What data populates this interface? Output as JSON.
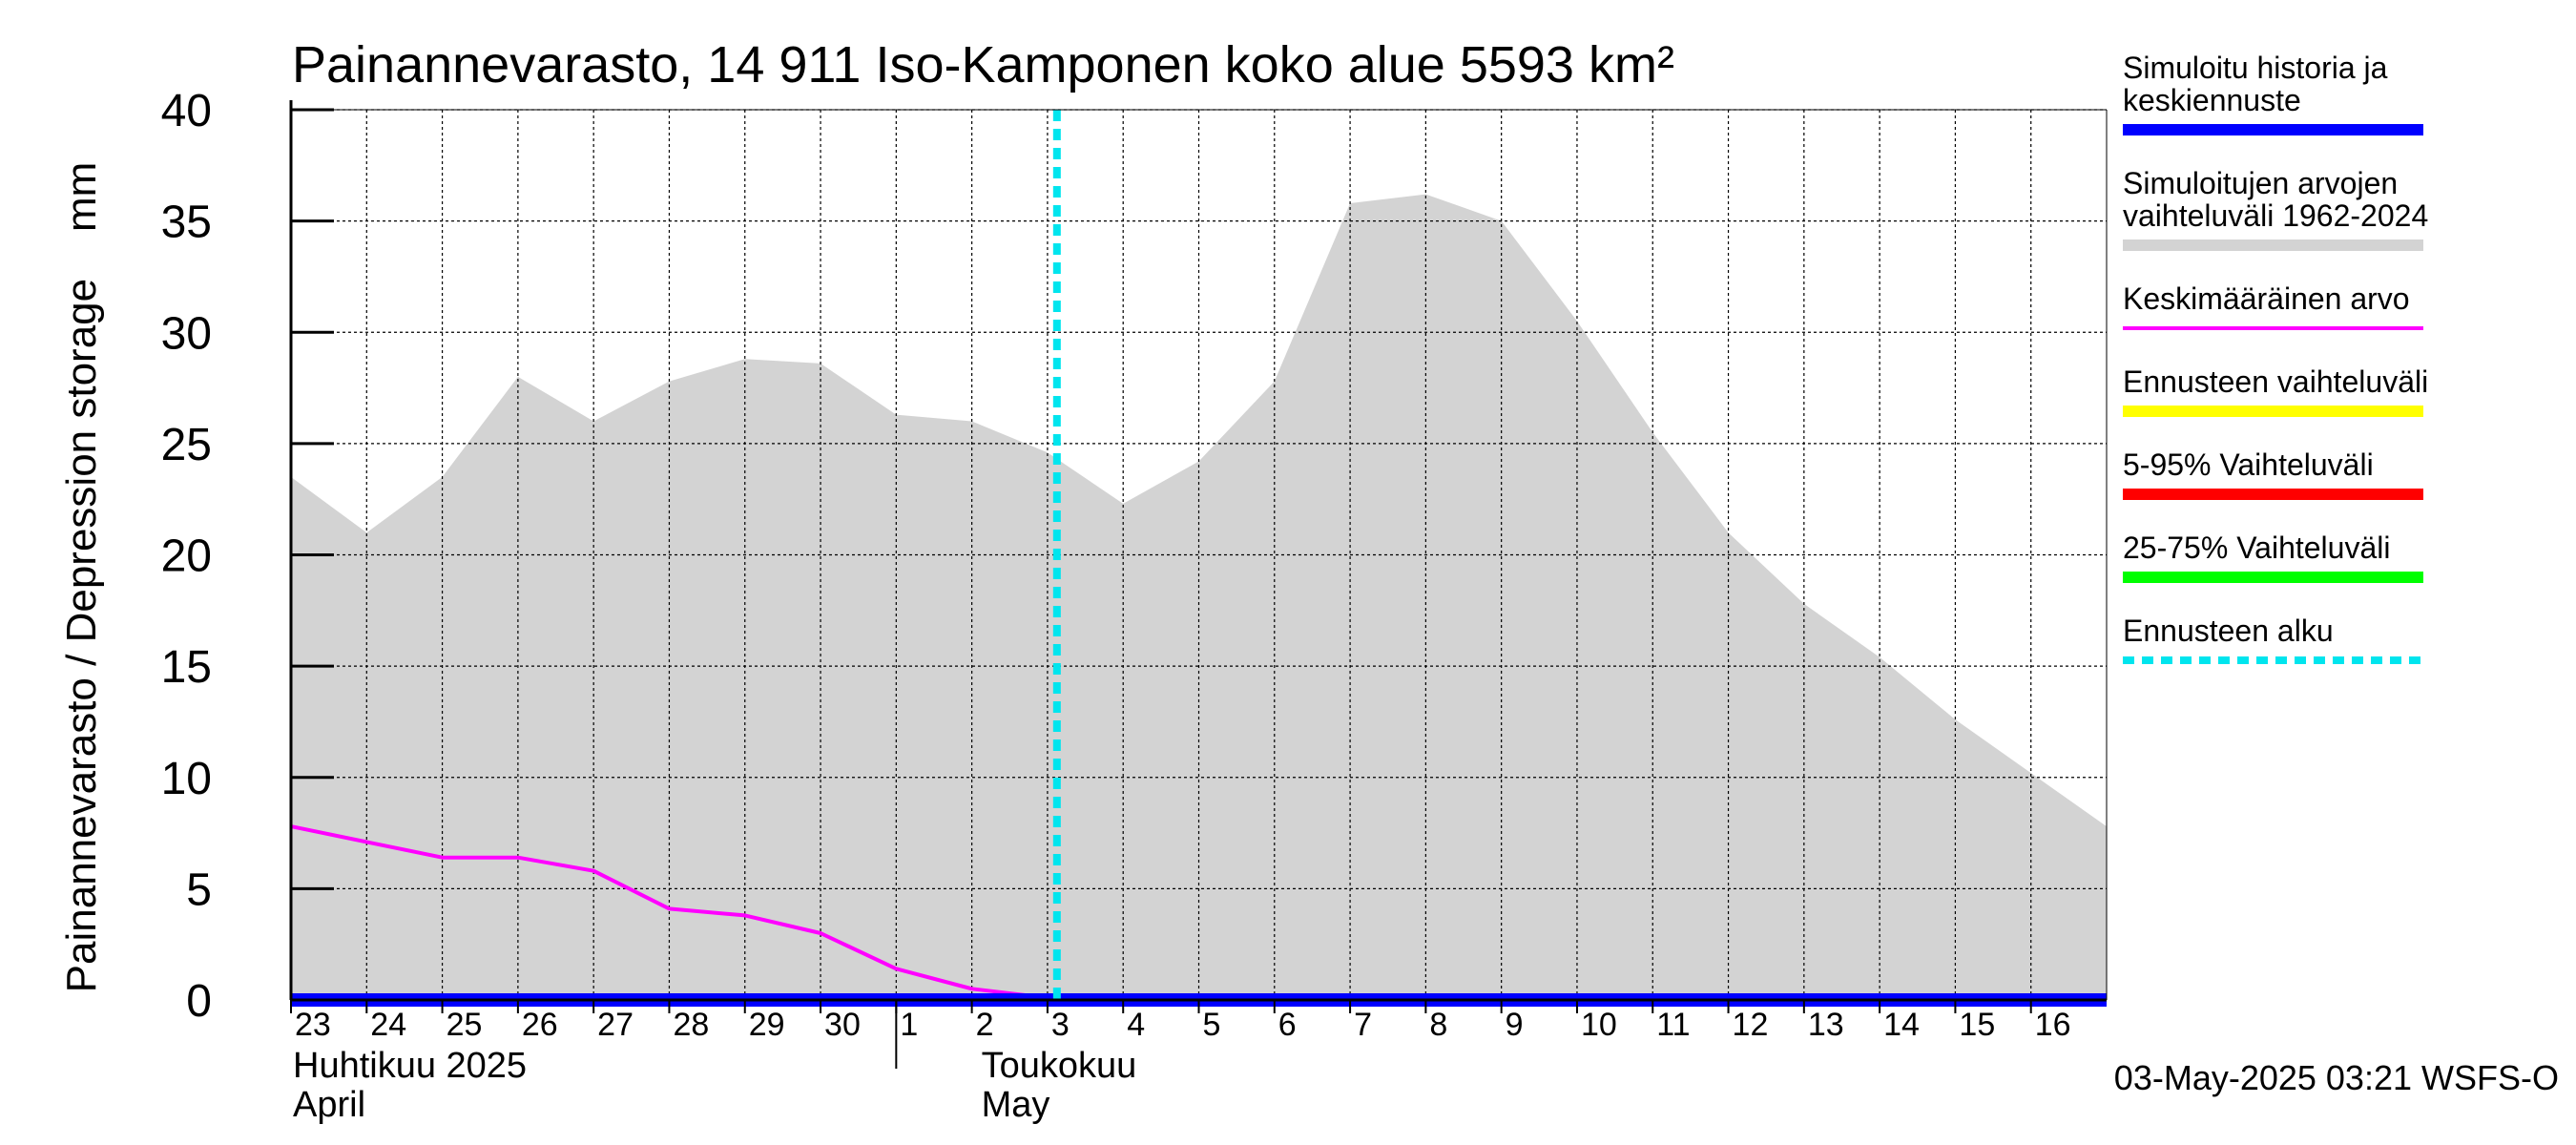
{
  "chart_data": {
    "type": "area",
    "title": "Painannevarasto, 14 911 Iso-Kamponen koko alue 5593 km²",
    "ylabel": "Painannevarasto / Depression storage    mm",
    "ylim": [
      0,
      40
    ],
    "yticks": [
      0,
      5,
      10,
      15,
      20,
      25,
      30,
      35,
      40
    ],
    "grid": true,
    "legend_position": "right",
    "x_start": "2025-04-23",
    "x_end": "2025-05-17",
    "x_tick_labels": [
      "23",
      "24",
      "25",
      "26",
      "27",
      "28",
      "29",
      "30",
      "1",
      "2",
      "3",
      "4",
      "5",
      "6",
      "7",
      "8",
      "9",
      "10",
      "11",
      "12",
      "13",
      "14",
      "15",
      "16"
    ],
    "month_labels": [
      {
        "fi": "Huhtikuu  2025",
        "en": "April",
        "date": "2025-04-23"
      },
      {
        "fi": "Toukokuu",
        "en": "May",
        "date": "2025-05-02"
      }
    ],
    "month_separator_date": "2025-05-01",
    "forecast_start": "2025-05-03T03:00",
    "series": [
      {
        "name": "Simuloitujen arvojen vaihteluväli 1962-2024",
        "kind": "band",
        "color": "#d3d3d3",
        "x": [
          "2025-04-23",
          "2025-04-24",
          "2025-04-25",
          "2025-04-26",
          "2025-04-27",
          "2025-04-28",
          "2025-04-29",
          "2025-04-30",
          "2025-05-01",
          "2025-05-02",
          "2025-05-03",
          "2025-05-04",
          "2025-05-05",
          "2025-05-06",
          "2025-05-07",
          "2025-05-08",
          "2025-05-09",
          "2025-05-10",
          "2025-05-11",
          "2025-05-12",
          "2025-05-13",
          "2025-05-14",
          "2025-05-15",
          "2025-05-16",
          "2025-05-17"
        ],
        "upper": [
          23.5,
          21.0,
          23.5,
          28.0,
          26.0,
          27.8,
          28.8,
          28.6,
          26.3,
          26.0,
          24.6,
          22.3,
          24.2,
          27.8,
          35.8,
          36.2,
          35.0,
          30.5,
          25.5,
          21.0,
          17.8,
          15.4,
          12.6,
          10.2,
          7.8
        ],
        "lower": [
          0,
          0,
          0,
          0,
          0,
          0,
          0,
          0,
          0,
          0,
          0,
          0,
          0,
          0,
          0,
          0,
          0,
          0,
          0,
          0,
          0,
          0,
          0,
          0,
          0
        ]
      },
      {
        "name": "Keskimääräinen arvo",
        "kind": "line",
        "color": "#ff00ff",
        "x": [
          "2025-04-23",
          "2025-04-24",
          "2025-04-25",
          "2025-04-26",
          "2025-04-27",
          "2025-04-28",
          "2025-04-29",
          "2025-04-30",
          "2025-05-01",
          "2025-05-02",
          "2025-05-03",
          "2025-05-04",
          "2025-05-05",
          "2025-05-06",
          "2025-05-07",
          "2025-05-08",
          "2025-05-09",
          "2025-05-10",
          "2025-05-11",
          "2025-05-12",
          "2025-05-13",
          "2025-05-14",
          "2025-05-15",
          "2025-05-16",
          "2025-05-17"
        ],
        "values": [
          7.8,
          7.1,
          6.4,
          6.4,
          5.8,
          4.1,
          3.8,
          3.0,
          1.4,
          0.5,
          0.1,
          0.05,
          0.05,
          0.05,
          0.05,
          0.05,
          0.05,
          0.05,
          0.05,
          0.05,
          0.05,
          0.05,
          0.05,
          0.05,
          0.05
        ]
      },
      {
        "name": "Simuloitu historia ja keskiennuste",
        "kind": "line",
        "color": "#0000ff",
        "x": [
          "2025-04-23",
          "2025-05-17"
        ],
        "values": [
          0,
          0
        ]
      }
    ]
  },
  "legend": [
    {
      "lines": [
        "Simuloitu historia ja",
        "keskiennuste"
      ],
      "color": "#0000ff",
      "style": "solid-thick"
    },
    {
      "lines": [
        "Simuloitujen arvojen",
        "vaihteluväli 1962-2024"
      ],
      "color": "#d3d3d3",
      "style": "solid-thick"
    },
    {
      "lines": [
        "Keskimääräinen arvo"
      ],
      "color": "#ff00ff",
      "style": "solid-thin"
    },
    {
      "lines": [
        "Ennusteen vaihteluväli"
      ],
      "color": "#ffff00",
      "style": "solid-thick"
    },
    {
      "lines": [
        "5-95% Vaihteluväli"
      ],
      "color": "#ff0000",
      "style": "solid-thick"
    },
    {
      "lines": [
        "25-75% Vaihteluväli"
      ],
      "color": "#00ff00",
      "style": "solid-thick"
    },
    {
      "lines": [
        "Ennusteen alku"
      ],
      "color": "#00ffff",
      "style": "dashed"
    }
  ],
  "footer": "03-May-2025 03:21 WSFS-O"
}
